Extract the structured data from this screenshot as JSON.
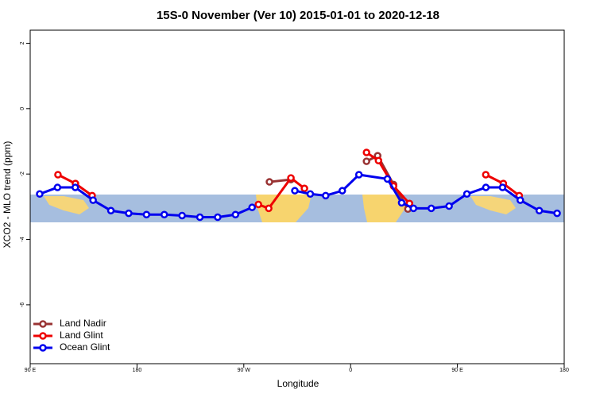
{
  "chart_data": {
    "type": "line",
    "title": "15S-0 November (Ver 10)   2015-01-01 to 2020-12-18",
    "x_label": "Longitude",
    "y_label": "XCO2 - MLO trend (ppm)",
    "xlim": [
      -270,
      180
    ],
    "xticks": [
      {
        "value": -270,
        "label": "90 E"
      },
      {
        "value": -180,
        "label": "180"
      },
      {
        "value": -90,
        "label": "90 W"
      },
      0,
      {
        "value": 90,
        "label": "90 E"
      },
      180
    ],
    "ylim": [
      -7.8,
      2.4
    ],
    "yticks": [
      2,
      0,
      -2,
      -4,
      -6
    ],
    "legend": "bottom-left",
    "series": [
      {
        "name": "Land Nadir",
        "color": "#993333",
        "x": [
          -68.4,
          -50.3,
          null,
          13.4,
          22.8,
          36.2,
          48.3
        ],
        "values": [
          -2.24,
          -2.17,
          null,
          -1.61,
          -1.44,
          -2.32,
          -3.07
        ]
      },
      {
        "name": "Land Glint",
        "color": "#ee0000",
        "x": [
          -246.6,
          -231.9,
          -217.8,
          null,
          -77.7,
          -69,
          -50.3,
          -38.9,
          null,
          13.4,
          23.5,
          36.2,
          49.6,
          null,
          113.9,
          128.7,
          142.1
        ],
        "values": [
          -2.02,
          -2.29,
          -2.66,
          null,
          -2.93,
          -3.05,
          -2.12,
          -2.44,
          null,
          -1.34,
          -1.59,
          -2.37,
          -2.9,
          null,
          -2.02,
          -2.29,
          -2.66
        ]
      },
      {
        "name": "Ocean Glint",
        "color": "#0000ee",
        "x": [
          -262,
          -247,
          -232,
          -217,
          -202,
          -187,
          -172,
          -157,
          -142,
          -127,
          -112,
          -97,
          -83,
          null,
          -47,
          -34,
          -21,
          -7,
          7,
          31,
          43,
          53,
          68,
          83,
          98,
          114,
          128,
          143,
          159,
          174
        ],
        "values": [
          -2.61,
          -2.41,
          -2.41,
          -2.8,
          -3.12,
          -3.2,
          -3.24,
          -3.24,
          -3.27,
          -3.32,
          -3.32,
          -3.24,
          -3.02,
          null,
          -2.51,
          -2.61,
          -2.66,
          -2.51,
          -2.02,
          -2.15,
          -2.88,
          -3.05,
          -3.05,
          -2.98,
          -2.61,
          -2.41,
          -2.41,
          -2.8,
          -3.12,
          -3.2
        ]
      }
    ]
  }
}
